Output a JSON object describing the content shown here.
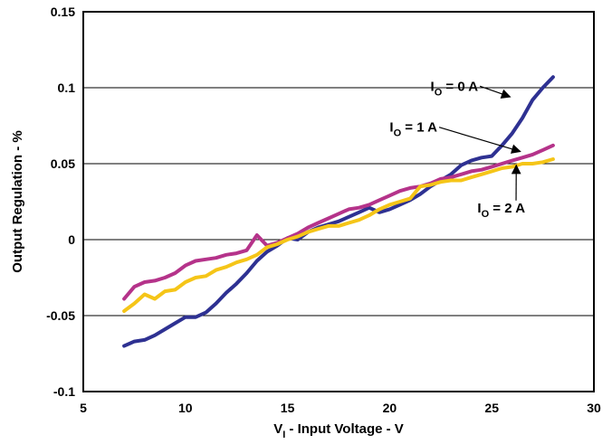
{
  "chart_data": {
    "type": "line",
    "xlabel": {
      "main": "V",
      "sub": "I",
      "rest": " - Input Voltage - V"
    },
    "ylabel": "Output Regulation - %",
    "xlim": [
      5,
      30
    ],
    "ylim": [
      -0.1,
      0.15
    ],
    "x_ticks": [
      "5",
      "10",
      "15",
      "20",
      "25",
      "30"
    ],
    "y_ticks": [
      "-0.1",
      "-0.05",
      "0",
      "0.05",
      "0.1",
      "0.15"
    ],
    "grid": "horizontal",
    "series": [
      {
        "name": "IO = 0 A",
        "label": {
          "main": "I",
          "sub": "O",
          "rest": " = 0 A"
        },
        "color": "#2e3192",
        "x": [
          7,
          7.5,
          8,
          8.5,
          9,
          9.5,
          10,
          10.5,
          11,
          11.5,
          12,
          12.5,
          13,
          13.5,
          14,
          14.5,
          15,
          15.5,
          16,
          16.5,
          17,
          17.5,
          18,
          18.5,
          19,
          19.5,
          20,
          20.5,
          21,
          21.5,
          22,
          22.5,
          23,
          23.5,
          24,
          24.5,
          25,
          25.5,
          26,
          26.5,
          27,
          27.5,
          28
        ],
        "y": [
          -0.07,
          -0.067,
          -0.066,
          -0.063,
          -0.059,
          -0.055,
          -0.051,
          -0.051,
          -0.048,
          -0.042,
          -0.035,
          -0.029,
          -0.022,
          -0.014,
          -0.008,
          -0.004,
          0.001,
          0.0,
          0.005,
          0.008,
          0.01,
          0.012,
          0.015,
          0.018,
          0.021,
          0.018,
          0.02,
          0.023,
          0.026,
          0.03,
          0.035,
          0.039,
          0.043,
          0.049,
          0.052,
          0.054,
          0.055,
          0.062,
          0.07,
          0.08,
          0.092,
          0.1,
          0.107
        ]
      },
      {
        "name": "IO = 1 A",
        "label": {
          "main": "I",
          "sub": "O",
          "rest": " = 1 A"
        },
        "color": "#b5338a",
        "x": [
          7,
          7.5,
          8,
          8.5,
          9,
          9.5,
          10,
          10.5,
          11,
          11.5,
          12,
          12.5,
          13,
          13.5,
          14,
          14.5,
          15,
          15.5,
          16,
          16.5,
          17,
          17.5,
          18,
          18.5,
          19,
          19.5,
          20,
          20.5,
          21,
          21.5,
          22,
          22.5,
          23,
          23.5,
          24,
          24.5,
          25,
          25.5,
          26,
          26.5,
          27,
          27.5,
          28
        ],
        "y": [
          -0.039,
          -0.031,
          -0.028,
          -0.027,
          -0.025,
          -0.022,
          -0.017,
          -0.014,
          -0.013,
          -0.012,
          -0.01,
          -0.009,
          -0.007,
          0.003,
          -0.004,
          -0.002,
          0.001,
          0.004,
          0.008,
          0.011,
          0.014,
          0.017,
          0.02,
          0.021,
          0.023,
          0.026,
          0.029,
          0.032,
          0.034,
          0.035,
          0.037,
          0.04,
          0.041,
          0.043,
          0.045,
          0.046,
          0.048,
          0.05,
          0.052,
          0.054,
          0.056,
          0.059,
          0.062
        ]
      },
      {
        "name": "IO = 2 A",
        "label": {
          "main": "I",
          "sub": "O",
          "rest": " = 2 A"
        },
        "color": "#f5c518",
        "x": [
          7,
          7.5,
          8,
          8.5,
          9,
          9.5,
          10,
          10.5,
          11,
          11.5,
          12,
          12.5,
          13,
          13.5,
          14,
          14.5,
          15,
          15.5,
          16,
          16.5,
          17,
          17.5,
          18,
          18.5,
          19,
          19.5,
          20,
          20.5,
          21,
          21.5,
          22,
          22.5,
          23,
          23.5,
          24,
          24.5,
          25,
          25.5,
          26,
          26.5,
          27,
          27.5,
          28
        ],
        "y": [
          -0.047,
          -0.042,
          -0.036,
          -0.039,
          -0.034,
          -0.033,
          -0.028,
          -0.025,
          -0.024,
          -0.02,
          -0.018,
          -0.015,
          -0.013,
          -0.01,
          -0.005,
          -0.003,
          0.0,
          0.002,
          0.005,
          0.007,
          0.009,
          0.009,
          0.011,
          0.013,
          0.016,
          0.02,
          0.023,
          0.025,
          0.027,
          0.035,
          0.036,
          0.038,
          0.039,
          0.039,
          0.041,
          0.043,
          0.045,
          0.047,
          0.048,
          0.05,
          0.05,
          0.051,
          0.053
        ]
      }
    ],
    "annotations": [
      {
        "series": 0,
        "text_at": [
          22.0,
          0.098
        ],
        "arrow_to": [
          25.9,
          0.094
        ]
      },
      {
        "series": 1,
        "text_at": [
          20.0,
          0.071
        ],
        "arrow_to": [
          26.4,
          0.058
        ]
      },
      {
        "series": 2,
        "text_at": [
          24.3,
          0.018
        ],
        "arrow_to": [
          26.2,
          0.049
        ]
      }
    ]
  }
}
